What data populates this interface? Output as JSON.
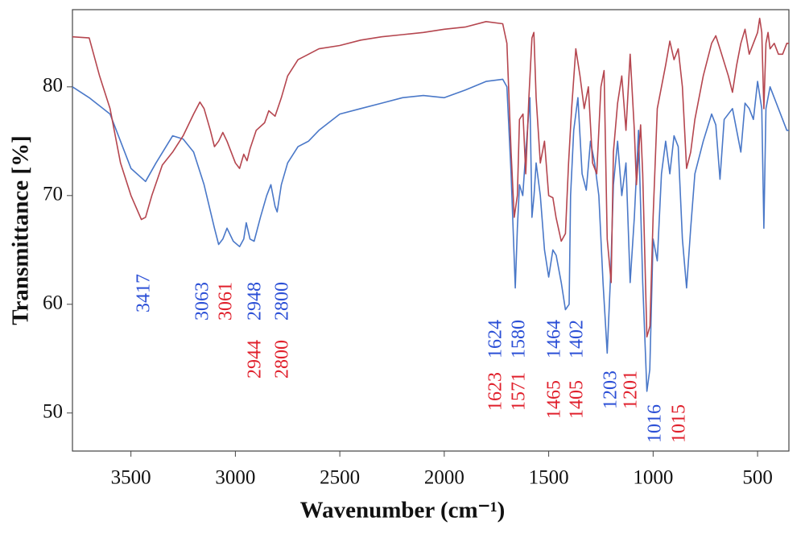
{
  "chart_data": {
    "type": "line",
    "x_label": "Wavenumber (cm⁻¹)",
    "y_label": "Transmittance [%]",
    "xlim": [
      3780,
      350
    ],
    "ylim": [
      46.5,
      87.1
    ],
    "xticks": [
      3500,
      3000,
      2500,
      2000,
      1500,
      1000,
      500
    ],
    "yticks": [
      50,
      60,
      70,
      80
    ],
    "grid": false,
    "series": [
      {
        "color": "#4a78c8",
        "x": [
          3780,
          3700,
          3600,
          3500,
          3430,
          3380,
          3300,
          3250,
          3200,
          3150,
          3100,
          3080,
          3060,
          3040,
          3010,
          2980,
          2960,
          2948,
          2930,
          2910,
          2880,
          2850,
          2830,
          2810,
          2800,
          2780,
          2750,
          2700,
          2650,
          2600,
          2500,
          2400,
          2300,
          2200,
          2100,
          2000,
          1900,
          1800,
          1720,
          1700,
          1680,
          1660,
          1650,
          1640,
          1624,
          1610,
          1590,
          1580,
          1570,
          1560,
          1540,
          1520,
          1500,
          1480,
          1464,
          1440,
          1420,
          1402,
          1395,
          1380,
          1360,
          1340,
          1320,
          1300,
          1280,
          1260,
          1240,
          1220,
          1203,
          1190,
          1170,
          1150,
          1130,
          1110,
          1090,
          1070,
          1050,
          1030,
          1016,
          1000,
          980,
          960,
          940,
          920,
          900,
          880,
          860,
          840,
          820,
          800,
          760,
          720,
          700,
          680,
          660,
          620,
          600,
          580,
          560,
          540,
          520,
          500,
          480,
          470,
          460,
          440,
          420,
          400,
          380,
          360,
          350
        ],
        "values": [
          80,
          79,
          77.5,
          72.5,
          71.3,
          73,
          75.5,
          75.2,
          74,
          71,
          67,
          65.5,
          66,
          67,
          65.8,
          65.3,
          66,
          67.5,
          66,
          65.8,
          68,
          70,
          71,
          69,
          68.5,
          71,
          73,
          74.5,
          75,
          76,
          77.5,
          78,
          78.5,
          79,
          79.2,
          79,
          79.7,
          80.5,
          80.7,
          80,
          72,
          61.5,
          67,
          71,
          70,
          74,
          79,
          68,
          70,
          73,
          70,
          65,
          62.5,
          65,
          64.5,
          62,
          59.5,
          60,
          70,
          76,
          79,
          72,
          70.5,
          75,
          73,
          70,
          62,
          55.5,
          63,
          71,
          75,
          70,
          73,
          62,
          68,
          76,
          62,
          52,
          54,
          66,
          64,
          72,
          75,
          72,
          75.5,
          74.5,
          66,
          61.5,
          67,
          72,
          75,
          77.5,
          76.5,
          71.5,
          77,
          78,
          76,
          74,
          78.5,
          78,
          77,
          80.5,
          78,
          67,
          78,
          80,
          79,
          78,
          77,
          76,
          76
        ]
      },
      {
        "color": "#b5464f",
        "x": [
          3780,
          3700,
          3650,
          3600,
          3550,
          3500,
          3450,
          3430,
          3400,
          3350,
          3300,
          3250,
          3200,
          3170,
          3150,
          3120,
          3100,
          3080,
          3060,
          3040,
          3000,
          2980,
          2960,
          2944,
          2930,
          2900,
          2860,
          2840,
          2810,
          2780,
          2750,
          2700,
          2600,
          2500,
          2400,
          2300,
          2200,
          2100,
          2000,
          1900,
          1800,
          1720,
          1700,
          1680,
          1665,
          1650,
          1640,
          1623,
          1610,
          1595,
          1580,
          1571,
          1560,
          1540,
          1520,
          1500,
          1480,
          1465,
          1440,
          1420,
          1405,
          1390,
          1370,
          1350,
          1330,
          1310,
          1290,
          1270,
          1250,
          1235,
          1220,
          1201,
          1190,
          1170,
          1150,
          1130,
          1110,
          1090,
          1080,
          1060,
          1050,
          1030,
          1015,
          1000,
          980,
          960,
          940,
          920,
          900,
          880,
          860,
          840,
          820,
          800,
          760,
          720,
          700,
          680,
          640,
          620,
          600,
          580,
          560,
          540,
          520,
          500,
          490,
          480,
          470,
          460,
          450,
          440,
          420,
          400,
          380,
          360,
          350
        ],
        "values": [
          84.6,
          84.5,
          81,
          78,
          73,
          70,
          67.8,
          68,
          70,
          72.8,
          74,
          75.5,
          77.5,
          78.6,
          78,
          76,
          74.5,
          75,
          75.8,
          75,
          73,
          72.5,
          73.8,
          73.2,
          74.3,
          76,
          76.7,
          77.8,
          77.3,
          79,
          81,
          82.5,
          83.5,
          83.8,
          84.3,
          84.6,
          84.8,
          85,
          85.3,
          85.5,
          86,
          85.8,
          84,
          74,
          68,
          70,
          77,
          77.5,
          72,
          79,
          84.5,
          85,
          79,
          73,
          75,
          70,
          69.8,
          68,
          65.8,
          66.5,
          73,
          78,
          83.5,
          81,
          78,
          80,
          73,
          72,
          80,
          81.5,
          66,
          62,
          74,
          78.5,
          81,
          76,
          83,
          76,
          71,
          76.5,
          72,
          57,
          58,
          68,
          78,
          80,
          82,
          84.2,
          82.5,
          83.5,
          80,
          72.5,
          74,
          77,
          81,
          84,
          84.7,
          83.5,
          81,
          79.5,
          82,
          84,
          85.3,
          83,
          84,
          85,
          86.3,
          85,
          78,
          84,
          85,
          83.5,
          84,
          83,
          83,
          84,
          84
        ]
      }
    ],
    "annotations": [
      {
        "text": "3417",
        "color": "#2b4fd6"
      },
      {
        "text": "3063",
        "color": "#2b4fd6"
      },
      {
        "text": "3061",
        "color": "#e0202c"
      },
      {
        "text": "2948",
        "color": "#2b4fd6"
      },
      {
        "text": "2800",
        "color": "#2b4fd6"
      },
      {
        "text": "2944",
        "color": "#e0202c"
      },
      {
        "text": "2800",
        "color": "#e0202c"
      },
      {
        "text": "1624",
        "color": "#2b4fd6"
      },
      {
        "text": "1623",
        "color": "#e0202c"
      },
      {
        "text": "1580",
        "color": "#2b4fd6"
      },
      {
        "text": "1571",
        "color": "#e0202c"
      },
      {
        "text": "1464",
        "color": "#2b4fd6"
      },
      {
        "text": "1465",
        "color": "#e0202c"
      },
      {
        "text": "1402",
        "color": "#2b4fd6"
      },
      {
        "text": "1405",
        "color": "#e0202c"
      },
      {
        "text": "1203",
        "color": "#2b4fd6"
      },
      {
        "text": "1201",
        "color": "#e0202c"
      },
      {
        "text": "1016",
        "color": "#2b4fd6"
      },
      {
        "text": "1015",
        "color": "#e0202c"
      }
    ]
  }
}
